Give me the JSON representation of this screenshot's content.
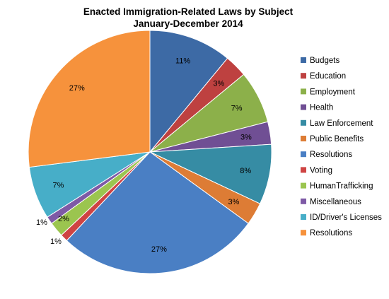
{
  "chart_data": {
    "type": "pie",
    "title": "Enacted Immigration-Related Laws by Subject",
    "subtitle": "January-December 2014",
    "legend_position": "right",
    "slices": [
      {
        "label": "Budgets",
        "value": 11,
        "display": "11%",
        "color": "#3d6aa5"
      },
      {
        "label": "Education",
        "value": 3,
        "display": "3%",
        "color": "#be4140"
      },
      {
        "label": "Employment",
        "value": 7,
        "display": "7%",
        "color": "#8cb04a"
      },
      {
        "label": "Health",
        "value": 3,
        "display": "3%",
        "color": "#704f94"
      },
      {
        "label": "Law Enforcement",
        "value": 8,
        "display": "8%",
        "color": "#368ca4"
      },
      {
        "label": "Public Benefits",
        "value": 3,
        "display": "3%",
        "color": "#dd7c35"
      },
      {
        "label": "Resolutions",
        "value": 27,
        "display": "27%",
        "color": "#4a7fc4"
      },
      {
        "label": "Voting",
        "value": 1,
        "display": "1%",
        "color": "#cf4443"
      },
      {
        "label": "HumanTrafficking",
        "value": 2,
        "display": "2%",
        "color": "#9bc54f"
      },
      {
        "label": "Miscellaneous",
        "value": 1,
        "display": "1%",
        "color": "#7e5aa6"
      },
      {
        "label": "ID/Driver's Licenses",
        "value": 7,
        "display": "7%",
        "color": "#47aec8"
      },
      {
        "label": "Resolutions",
        "value": 27,
        "display": "27%",
        "color": "#f6923c"
      }
    ]
  }
}
